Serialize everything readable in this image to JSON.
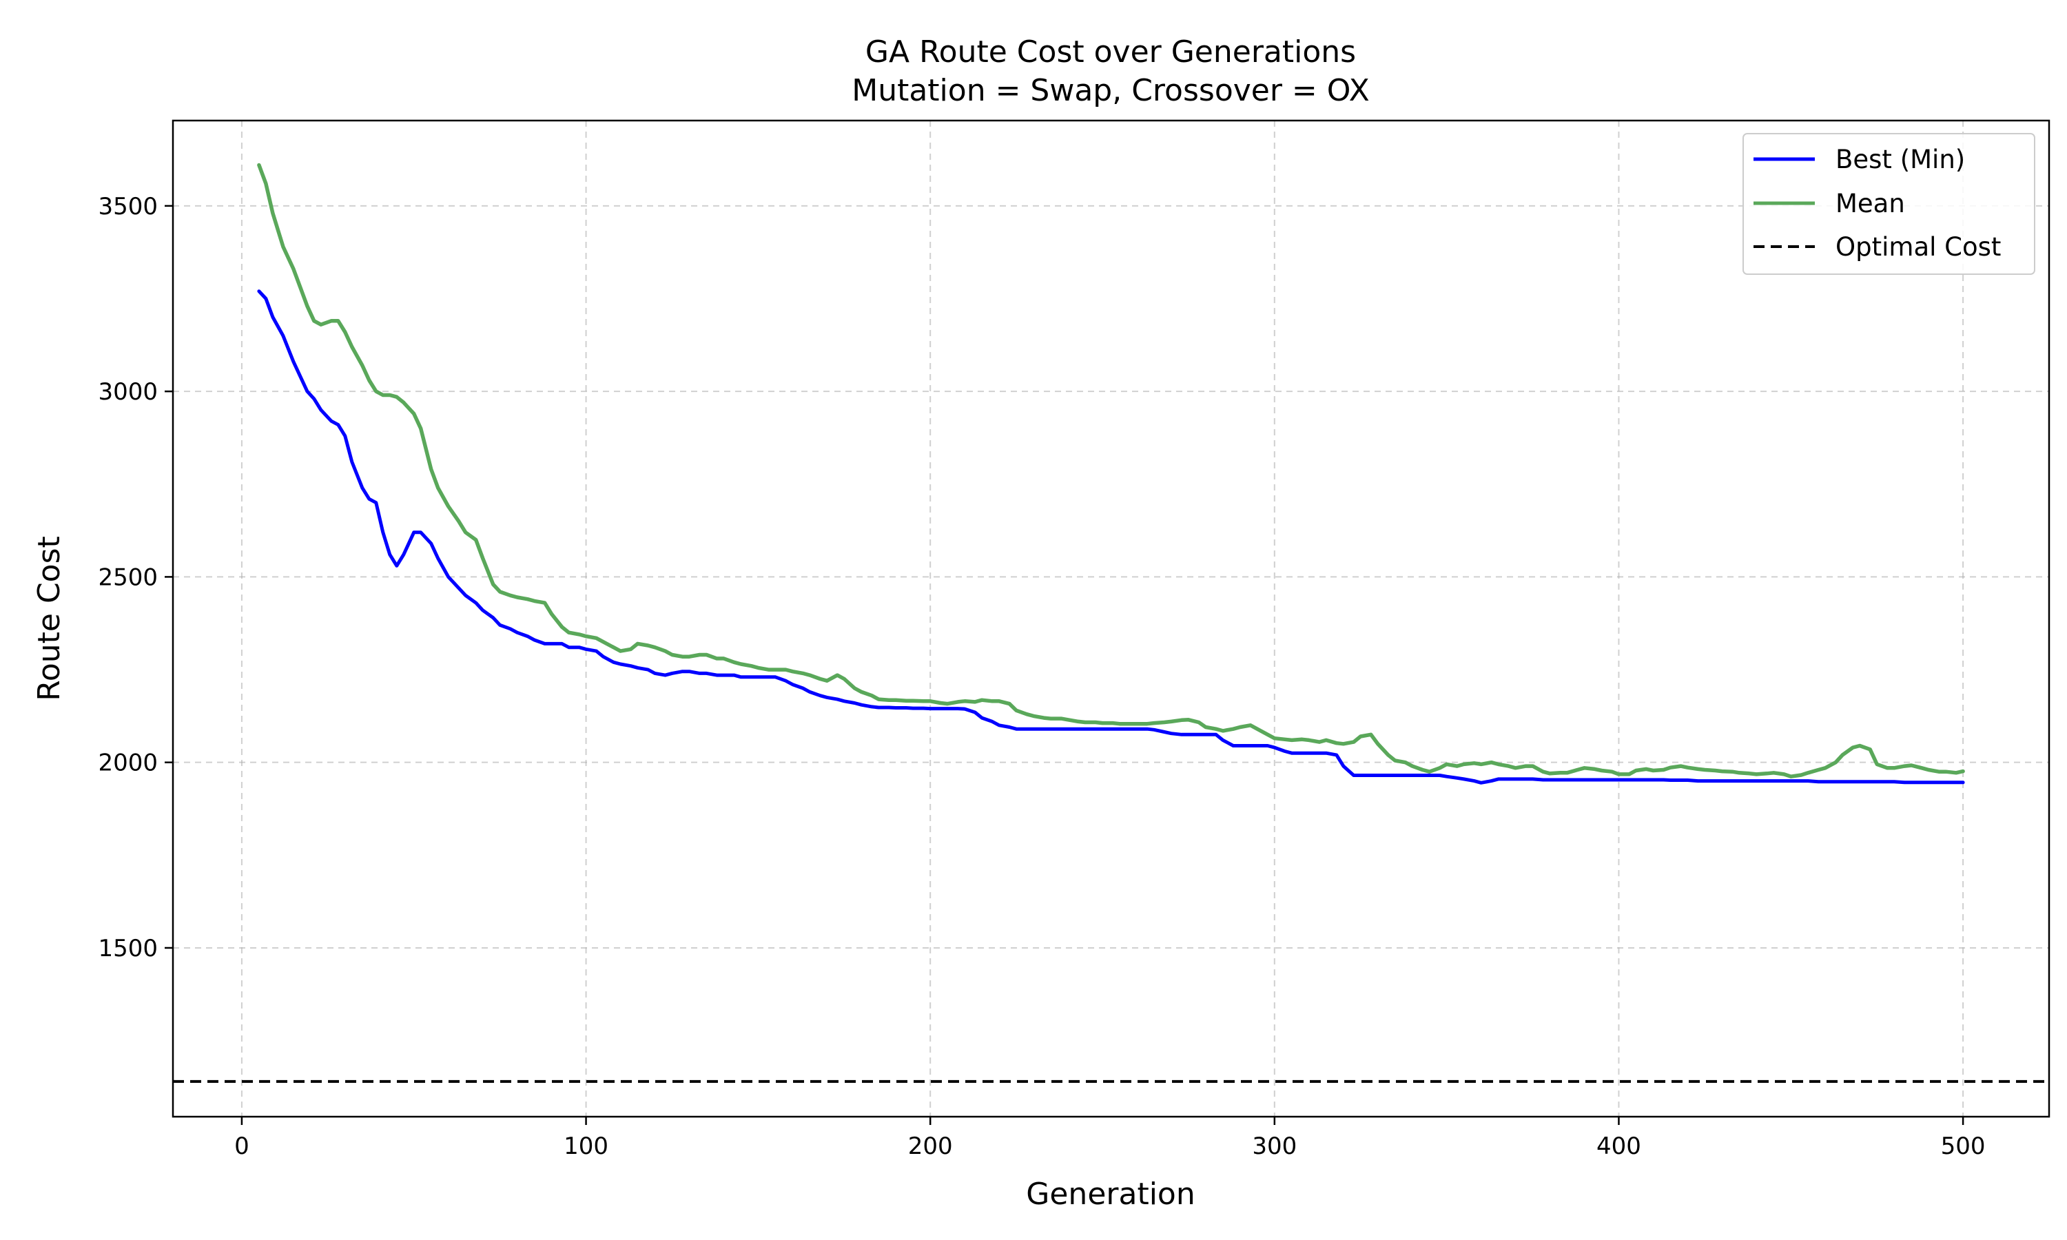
{
  "chart_data": {
    "type": "line",
    "title": "GA Route Cost over Generations",
    "subtitle": "Mutation = Swap, Crossover = OX",
    "xlabel": "Generation",
    "ylabel": "Route Cost",
    "xlim": [
      -20,
      525
    ],
    "ylim": [
      1045,
      3730
    ],
    "xticks": [
      0,
      100,
      200,
      300,
      400,
      500
    ],
    "yticks": [
      1500,
      2000,
      2500,
      3000,
      3500
    ],
    "grid": true,
    "legend_position": "top-right",
    "optimal_cost": 1140,
    "series": [
      {
        "name": "Best (Min)",
        "color": "#0000ff",
        "x": [
          5,
          7,
          9,
          12,
          15,
          17,
          19,
          21,
          23,
          26,
          28,
          30,
          32,
          35,
          37,
          39,
          41,
          43,
          45,
          47,
          50,
          52,
          55,
          57,
          60,
          63,
          65,
          68,
          70,
          73,
          75,
          78,
          80,
          83,
          85,
          88,
          90,
          93,
          95,
          98,
          100,
          103,
          105,
          108,
          110,
          113,
          115,
          118,
          120,
          123,
          125,
          128,
          130,
          133,
          135,
          138,
          140,
          143,
          145,
          148,
          150,
          153,
          155,
          158,
          160,
          163,
          165,
          168,
          170,
          173,
          175,
          178,
          180,
          183,
          185,
          188,
          190,
          193,
          195,
          198,
          200,
          203,
          205,
          208,
          210,
          213,
          215,
          218,
          220,
          223,
          225,
          228,
          230,
          233,
          235,
          238,
          240,
          243,
          245,
          248,
          250,
          253,
          255,
          258,
          260,
          263,
          265,
          268,
          270,
          273,
          275,
          278,
          280,
          283,
          285,
          288,
          290,
          293,
          295,
          298,
          300,
          303,
          305,
          308,
          310,
          313,
          315,
          318,
          320,
          323,
          325,
          328,
          330,
          333,
          335,
          338,
          340,
          343,
          345,
          348,
          350,
          353,
          355,
          358,
          360,
          363,
          365,
          368,
          370,
          373,
          375,
          378,
          380,
          383,
          385,
          388,
          390,
          393,
          395,
          398,
          400,
          403,
          405,
          408,
          410,
          413,
          415,
          418,
          420,
          423,
          425,
          428,
          430,
          433,
          435,
          438,
          440,
          443,
          445,
          448,
          450,
          453,
          455,
          458,
          460,
          463,
          465,
          468,
          470,
          473,
          475,
          478,
          480,
          483,
          485,
          488,
          490,
          493,
          495,
          498,
          500
        ],
        "values": [
          3270,
          3250,
          3200,
          3150,
          3080,
          3040,
          3000,
          2980,
          2950,
          2920,
          2910,
          2880,
          2810,
          2740,
          2710,
          2700,
          2620,
          2560,
          2530,
          2560,
          2620,
          2620,
          2590,
          2550,
          2500,
          2470,
          2450,
          2430,
          2410,
          2390,
          2370,
          2360,
          2350,
          2340,
          2330,
          2320,
          2320,
          2320,
          2310,
          2310,
          2305,
          2300,
          2285,
          2270,
          2265,
          2260,
          2255,
          2250,
          2240,
          2235,
          2240,
          2245,
          2245,
          2240,
          2240,
          2235,
          2235,
          2235,
          2230,
          2230,
          2230,
          2230,
          2230,
          2220,
          2210,
          2200,
          2190,
          2180,
          2175,
          2170,
          2165,
          2160,
          2155,
          2150,
          2148,
          2148,
          2147,
          2147,
          2146,
          2146,
          2145,
          2145,
          2145,
          2145,
          2144,
          2135,
          2120,
          2110,
          2100,
          2095,
          2090,
          2090,
          2090,
          2090,
          2090,
          2090,
          2090,
          2090,
          2090,
          2090,
          2090,
          2090,
          2090,
          2090,
          2090,
          2090,
          2088,
          2082,
          2078,
          2075,
          2075,
          2075,
          2075,
          2075,
          2060,
          2045,
          2045,
          2045,
          2045,
          2045,
          2040,
          2030,
          2025,
          2025,
          2025,
          2025,
          2025,
          2020,
          1990,
          1965,
          1965,
          1965,
          1965,
          1965,
          1965,
          1965,
          1965,
          1965,
          1965,
          1965,
          1962,
          1958,
          1955,
          1950,
          1945,
          1950,
          1955,
          1955,
          1955,
          1955,
          1955,
          1953,
          1953,
          1953,
          1953,
          1953,
          1953,
          1953,
          1953,
          1953,
          1953,
          1953,
          1953,
          1953,
          1953,
          1953,
          1952,
          1952,
          1952,
          1950,
          1950,
          1950,
          1950,
          1950,
          1950,
          1950,
          1950,
          1950,
          1950,
          1950,
          1950,
          1950,
          1950,
          1948,
          1948,
          1948,
          1948,
          1948,
          1948,
          1948,
          1948,
          1948,
          1948,
          1946,
          1946,
          1946,
          1946,
          1946,
          1946,
          1946,
          1946
        ]
      },
      {
        "name": "Mean",
        "color": "#5aa85a",
        "x": [
          5,
          7,
          9,
          12,
          15,
          17,
          19,
          21,
          23,
          26,
          28,
          30,
          32,
          35,
          37,
          39,
          41,
          43,
          45,
          47,
          50,
          52,
          55,
          57,
          60,
          63,
          65,
          68,
          70,
          73,
          75,
          78,
          80,
          83,
          85,
          88,
          90,
          93,
          95,
          98,
          100,
          103,
          105,
          108,
          110,
          113,
          115,
          118,
          120,
          123,
          125,
          128,
          130,
          133,
          135,
          138,
          140,
          143,
          145,
          148,
          150,
          153,
          155,
          158,
          160,
          163,
          165,
          168,
          170,
          173,
          175,
          178,
          180,
          183,
          185,
          188,
          190,
          193,
          195,
          198,
          200,
          203,
          205,
          208,
          210,
          213,
          215,
          218,
          220,
          223,
          225,
          228,
          230,
          233,
          235,
          238,
          240,
          243,
          245,
          248,
          250,
          253,
          255,
          258,
          260,
          263,
          265,
          268,
          270,
          273,
          275,
          278,
          280,
          283,
          285,
          288,
          290,
          293,
          295,
          298,
          300,
          303,
          305,
          308,
          310,
          313,
          315,
          318,
          320,
          323,
          325,
          328,
          330,
          333,
          335,
          338,
          340,
          343,
          345,
          348,
          350,
          353,
          355,
          358,
          360,
          363,
          365,
          368,
          370,
          373,
          375,
          378,
          380,
          383,
          385,
          388,
          390,
          393,
          395,
          398,
          400,
          403,
          405,
          408,
          410,
          413,
          415,
          418,
          420,
          423,
          425,
          428,
          430,
          433,
          435,
          438,
          440,
          443,
          445,
          448,
          450,
          453,
          455,
          458,
          460,
          463,
          465,
          468,
          470,
          473,
          475,
          478,
          480,
          483,
          485,
          488,
          490,
          493,
          495,
          498,
          500
        ],
        "values": [
          3610,
          3560,
          3480,
          3390,
          3330,
          3280,
          3230,
          3190,
          3180,
          3190,
          3190,
          3160,
          3120,
          3070,
          3030,
          3000,
          2990,
          2990,
          2985,
          2970,
          2940,
          2900,
          2790,
          2740,
          2690,
          2650,
          2620,
          2600,
          2550,
          2480,
          2460,
          2450,
          2445,
          2440,
          2435,
          2430,
          2400,
          2365,
          2350,
          2345,
          2340,
          2335,
          2325,
          2310,
          2300,
          2305,
          2320,
          2315,
          2310,
          2300,
          2290,
          2285,
          2285,
          2290,
          2290,
          2280,
          2280,
          2270,
          2265,
          2260,
          2255,
          2250,
          2250,
          2250,
          2245,
          2240,
          2235,
          2225,
          2220,
          2235,
          2225,
          2200,
          2190,
          2180,
          2170,
          2168,
          2168,
          2166,
          2166,
          2165,
          2165,
          2160,
          2158,
          2163,
          2165,
          2163,
          2168,
          2165,
          2165,
          2158,
          2140,
          2130,
          2125,
          2120,
          2118,
          2118,
          2115,
          2110,
          2108,
          2108,
          2106,
          2106,
          2104,
          2104,
          2104,
          2104,
          2106,
          2108,
          2110,
          2114,
          2115,
          2108,
          2095,
          2090,
          2085,
          2090,
          2095,
          2100,
          2090,
          2075,
          2065,
          2062,
          2060,
          2062,
          2060,
          2055,
          2060,
          2052,
          2050,
          2055,
          2070,
          2075,
          2050,
          2020,
          2005,
          2000,
          1990,
          1980,
          1975,
          1985,
          1995,
          1990,
          1995,
          1998,
          1995,
          2000,
          1995,
          1990,
          1985,
          1990,
          1990,
          1975,
          1970,
          1972,
          1972,
          1980,
          1985,
          1982,
          1978,
          1975,
          1968,
          1968,
          1978,
          1982,
          1978,
          1980,
          1986,
          1990,
          1986,
          1982,
          1980,
          1978,
          1976,
          1975,
          1972,
          1970,
          1968,
          1970,
          1972,
          1968,
          1962,
          1966,
          1972,
          1980,
          1985,
          2000,
          2020,
          2040,
          2045,
          2035,
          1995,
          1985,
          1985,
          1990,
          1992,
          1985,
          1980,
          1975,
          1975,
          1972,
          1976
        ]
      }
    ],
    "legend": [
      {
        "label": "Best (Min)",
        "color": "#0000ff",
        "style": "solid"
      },
      {
        "label": "Mean",
        "color": "#5aa85a",
        "style": "solid"
      },
      {
        "label": "Optimal Cost",
        "color": "#000000",
        "style": "dashed"
      }
    ]
  }
}
